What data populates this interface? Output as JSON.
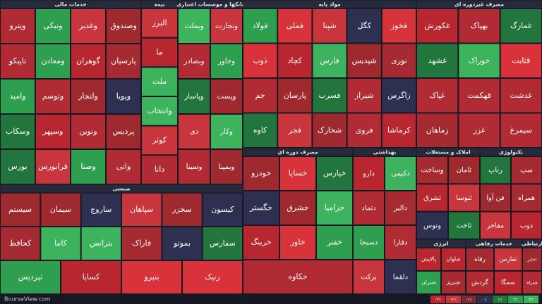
{
  "sectors": [
    {
      "title": "خدمات مالی",
      "tiles": [
        "وپترو",
        "ونیکی",
        "وغدیر",
        "وصندوق",
        "تاپیکو",
        "ومعادن",
        "گوهران",
        "پارسیان",
        "وامید",
        "وتوسم",
        "ولتجار",
        "وپویا",
        "وسکاب",
        "وسپهر",
        "ونوین",
        "پردیس",
        "بورس",
        "فرابورس",
        "وصنا",
        "واتی"
      ]
    },
    {
      "title": "بیمه",
      "tiles": [
        "البرز",
        "ما",
        "ملت",
        "وانتخاب",
        "کوثر",
        "دانا"
      ]
    },
    {
      "title": "بانکها و موسسات اعتباری",
      "tiles": [
        "وبملت",
        "وتجارت",
        "وبصادر",
        "وخاور",
        "وپاسار",
        "وپست",
        "دی",
        "وکار",
        "وسینا",
        "وبمپنا"
      ]
    },
    {
      "title": "مواد پایه",
      "tiles": [
        "فولاد",
        "فملی",
        "شپنا",
        "کگل",
        "فخوز",
        "ذوب",
        "کچاد",
        "فارس",
        "شپدیس",
        "نوری",
        "جم",
        "پارسان",
        "فسرب",
        "شیراز",
        "زاگرس",
        "کاوه",
        "فجر",
        "شخارک",
        "فروی",
        "کرماشا"
      ]
    },
    {
      "title": "مصرف غیردوره ای",
      "tiles": [
        "غکورش",
        "بهپاک",
        "غمارگ",
        "غشهد",
        "خوراک",
        "قثابت",
        "غپاک",
        "قهکمت",
        "غدشت",
        "زماهان",
        "غزر",
        "سیمرغ"
      ]
    },
    {
      "title": "صنعتی",
      "tiles": [
        "سیستم",
        "سیمان",
        "ساروج",
        "سپاهان",
        "سخزر",
        "کیسون",
        "کحافظ",
        "کاما",
        "بترانس",
        "فاراک",
        "بموتو",
        "سفارس",
        "ثپردیس",
        "کساپا",
        "بنیرو",
        "رنیک"
      ]
    },
    {
      "title": "مصرف دوره ای",
      "tiles": [
        "خودرو",
        "خساپا",
        "خپارس",
        "خگستر",
        "خشرق",
        "خزامیا",
        "خرینگ",
        "خاور",
        "خفنر",
        "خکاوه"
      ]
    },
    {
      "title": "بهداشتی",
      "tiles": [
        "دارو",
        "دکیمی",
        "دتماد",
        "دالبر",
        "دسبحا",
        "دفارا",
        "برکت",
        "دلقما"
      ]
    },
    {
      "title": "املاک و مستغلات",
      "tiles": [
        "وساخت",
        "ثامان",
        "ثشرق",
        "ثنوسا",
        "وتوس",
        "ثاخت"
      ]
    },
    {
      "title": "تکنولوژی",
      "tiles": [
        "رتاپ",
        "سپ",
        "فن آوا",
        "همراه",
        "مفاخر",
        "ذوب"
      ]
    },
    {
      "title": "انرژی",
      "tiles": [
        "پالایش",
        "شاوان",
        "شتران",
        "شبریز"
      ]
    },
    {
      "title": "خدمات رفاهی",
      "tiles": [
        "رفاه",
        "ثفارس",
        "گردش",
        "سمگا"
      ]
    },
    {
      "title": "ارتباطی",
      "tiles": [
        "اخابر",
        "همراه"
      ]
    }
  ],
  "footer": {
    "site": "BourseView.com",
    "legend": [
      "-۳٪",
      "-۲٪",
      "-۱٪",
      "۰٪",
      "۱٪",
      "۲٪",
      "۳٪"
    ]
  }
}
